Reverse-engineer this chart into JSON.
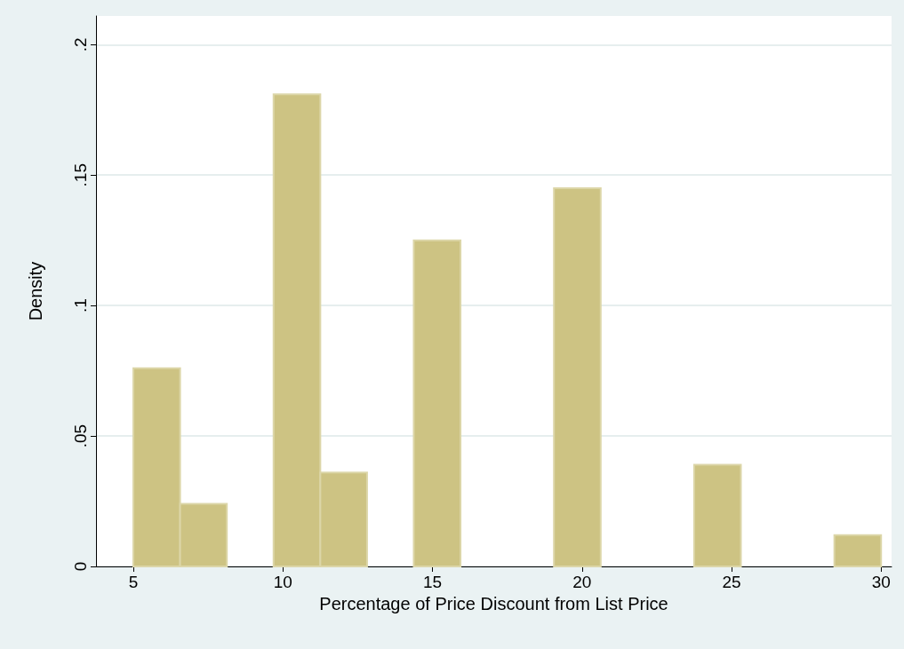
{
  "chart_data": {
    "type": "histogram",
    "xlabel": "Percentage of Price Discount from List Price",
    "ylabel": "Density",
    "bins": [
      5,
      6.5625,
      8.125,
      9.6875,
      11.25,
      12.8125,
      14.375,
      15.9375,
      17.5,
      19.0625,
      20.625,
      22.1875,
      23.75,
      25.3125,
      26.875,
      28.4375,
      30
    ],
    "values": [
      0.076,
      0.024,
      0,
      0.181,
      0.036,
      0,
      0.125,
      0,
      0,
      0.145,
      0,
      0,
      0.039,
      0,
      0,
      0.012
    ],
    "color": "#cdc383",
    "xlim": [
      3.75,
      30.35
    ],
    "xticks": [
      5,
      10,
      15,
      20,
      25,
      30
    ],
    "ylim": [
      0,
      0.211
    ],
    "yticks": [
      0,
      {
        "value": 0.05,
        "label": ".05"
      },
      {
        "value": 0.1,
        "label": ".1"
      },
      {
        "value": 0.15,
        "label": ".15"
      },
      {
        "value": 0.2,
        "label": ".2"
      }
    ],
    "grid": "y"
  }
}
